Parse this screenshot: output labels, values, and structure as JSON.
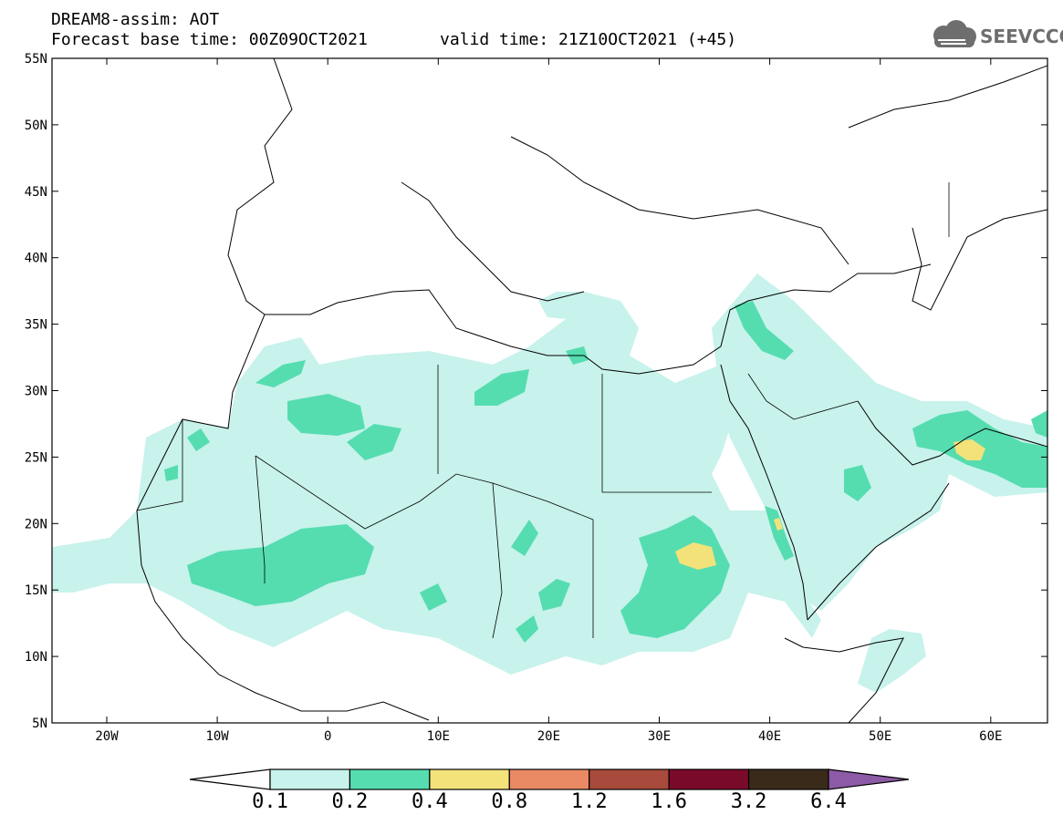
{
  "header": {
    "title": "DREAM8-assim: AOT",
    "base_time": "Forecast base time: 00Z09OCT2021",
    "valid_time": "valid time: 21Z10OCT2021 (+45)"
  },
  "logo": {
    "text": "SEEVCCC",
    "icon": "cloud-icon"
  },
  "axes": {
    "lat_labels": [
      "55N",
      "50N",
      "45N",
      "40N",
      "35N",
      "30N",
      "25N",
      "20N",
      "15N",
      "10N",
      "5N"
    ],
    "lon_labels": [
      "20W",
      "10W",
      "0",
      "10E",
      "20E",
      "30E",
      "40E",
      "50E",
      "60E"
    ]
  },
  "colorbar": {
    "labels": [
      "0.1",
      "0.2",
      "0.4",
      "0.8",
      "1.2",
      "1.6",
      "3.2",
      "6.4"
    ],
    "colors": [
      "#ffffff",
      "#c8f2ec",
      "#55ddb0",
      "#f3e27a",
      "#e98a65",
      "#a84a3c",
      "#7a0a2a",
      "#3a2a1a",
      "#8c5aa6"
    ]
  }
}
